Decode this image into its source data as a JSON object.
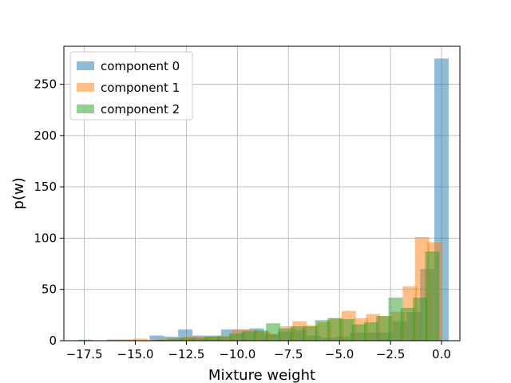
{
  "chart_data": {
    "type": "bar",
    "subtype": "overlaid-histogram",
    "title": "",
    "xlabel": "Mixture weight",
    "ylabel": "p(w)",
    "xlim": [
      -18.5,
      0.9
    ],
    "ylim": [
      0,
      287
    ],
    "xticks": [
      -17.5,
      -15.0,
      -12.5,
      -10.0,
      -7.5,
      -5.0,
      -2.5,
      0.0
    ],
    "xtick_labels": [
      "−17.5",
      "−15.0",
      "−12.5",
      "−10.0",
      "−7.5",
      "−5.0",
      "−2.5",
      "0.0"
    ],
    "yticks": [
      0,
      50,
      100,
      150,
      200,
      250
    ],
    "ytick_labels": [
      "0",
      "50",
      "100",
      "150",
      "200",
      "250"
    ],
    "grid": true,
    "legend_position": "top-left",
    "alpha": 0.5,
    "series": [
      {
        "name": "component 0",
        "color": "#1f77b4",
        "bins": [
          -17.8,
          -17.1,
          -16.4,
          -15.7,
          -15.0,
          -14.3,
          -13.6,
          -12.9,
          -12.2,
          -11.5,
          -10.8,
          -10.1,
          -9.4,
          -8.7,
          -8.0,
          -7.3,
          -6.6,
          -5.9,
          -5.2,
          -4.5,
          -3.8,
          -3.1,
          -2.4,
          -1.7,
          -1.05,
          -0.35
        ],
        "values": [
          1,
          0,
          1,
          1,
          0,
          5,
          4,
          11,
          5,
          5,
          11,
          11,
          12,
          6,
          9,
          10,
          5,
          3,
          4,
          8,
          8,
          8,
          19,
          28,
          70,
          275
        ]
      },
      {
        "name": "component 1",
        "color": "#ff7f0e",
        "bins": [
          -16.4,
          -15.7,
          -15.1,
          -14.5,
          -13.9,
          -13.3,
          -12.7,
          -12.1,
          -11.5,
          -10.9,
          -10.3,
          -9.7,
          -9.1,
          -8.5,
          -7.9,
          -7.3,
          -6.7,
          -6.1,
          -5.5,
          -4.9,
          -4.3,
          -3.7,
          -3.1,
          -2.5,
          -1.9,
          -1.3,
          -0.7,
          -0.1
        ],
        "values": [
          1,
          1,
          2,
          1,
          2,
          3,
          4,
          4,
          4,
          5,
          11,
          11,
          9,
          7,
          14,
          19,
          15,
          18,
          22,
          29,
          22,
          26,
          24,
          28,
          53,
          101,
          96,
          0
        ]
      },
      {
        "name": "component 2",
        "color": "#2ca02c",
        "bins": [
          -14.0,
          -13.4,
          -12.8,
          -12.2,
          -11.6,
          -11.0,
          -10.4,
          -9.8,
          -9.2,
          -8.6,
          -8.0,
          -7.4,
          -6.8,
          -6.2,
          -5.6,
          -5.0,
          -4.4,
          -3.8,
          -3.2,
          -2.6,
          -2.0,
          -1.4,
          -0.8,
          -0.2
        ],
        "values": [
          1,
          2,
          3,
          3,
          4,
          4,
          7,
          9,
          10,
          17,
          12,
          14,
          14,
          20,
          22,
          21,
          16,
          18,
          24,
          42,
          32,
          42,
          87,
          0
        ]
      }
    ]
  }
}
